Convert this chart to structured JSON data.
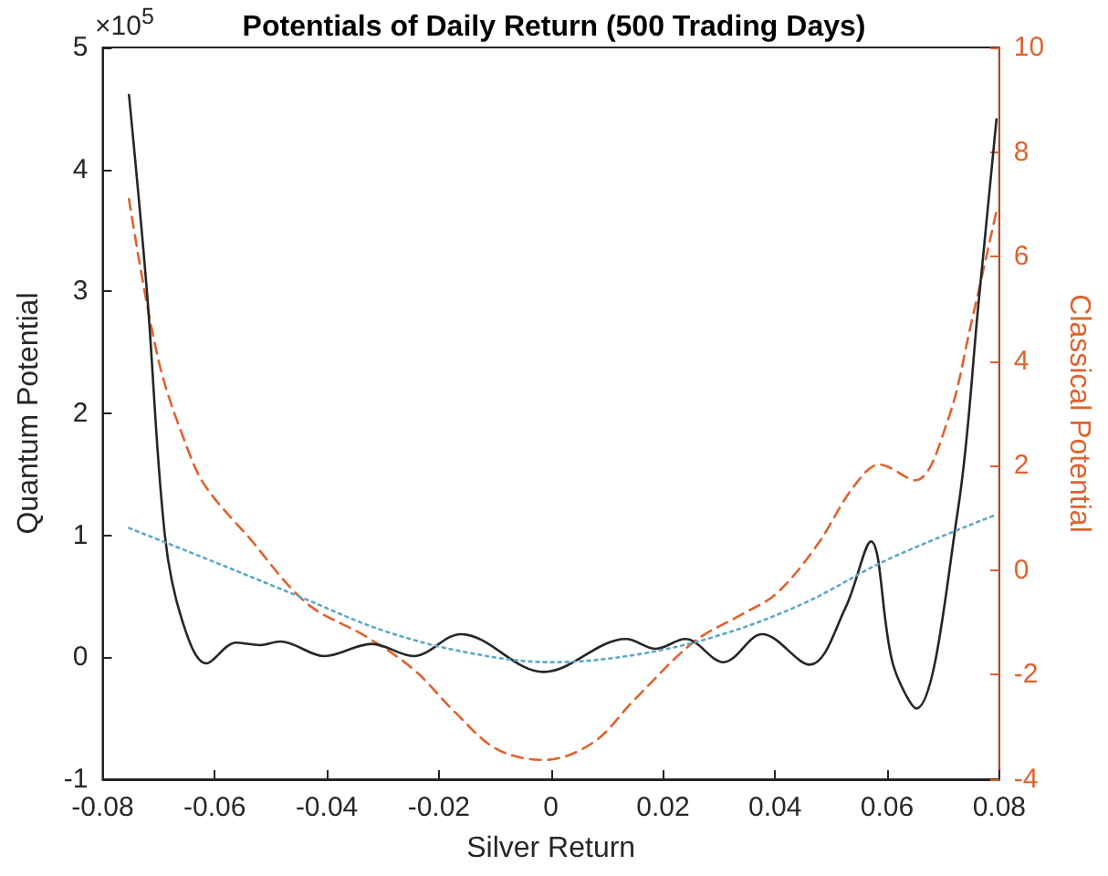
{
  "chart_data": {
    "type": "line",
    "title": "Potentials of Daily Return (500 Trading Days)",
    "xlabel": "Silver Return",
    "ylabel": "Quantum Potential",
    "y2label": "Classical Potential",
    "annotations": [
      "×10$^{5}$"
    ],
    "xlim": [
      -0.08,
      0.08
    ],
    "xticks": [
      -0.08,
      -0.06,
      -0.04,
      -0.02,
      0,
      0.02,
      0.04,
      0.06,
      0.08
    ],
    "ylim": [
      -1,
      5
    ],
    "yticks": [
      -1,
      0,
      1,
      2,
      3,
      4,
      5
    ],
    "y2lim": [
      -4,
      10
    ],
    "y2ticks": [
      -4,
      -2,
      0,
      2,
      4,
      6,
      8,
      10
    ],
    "grid": false,
    "marker": "none",
    "series": [
      {
        "color": "#262626",
        "line_style": "solid",
        "x": [
          -0.0753,
          -0.0721,
          -0.0689,
          -0.0658,
          -0.0615,
          -0.0562,
          -0.052,
          -0.0483,
          -0.0404,
          -0.032,
          -0.0245,
          -0.0161,
          -0.0013,
          0.0134,
          0.0187,
          0.024,
          0.0308,
          0.0377,
          0.0462,
          0.0525,
          0.0571,
          0.061,
          0.0652,
          0.0726,
          0.0763,
          0.0795
        ],
        "values": [
          4.61,
          3.0,
          1.0,
          0.3,
          -0.05,
          0.12,
          0.1,
          0.13,
          0.01,
          0.11,
          0.01,
          0.19,
          -0.12,
          0.15,
          0.07,
          0.15,
          -0.04,
          0.19,
          -0.06,
          0.4,
          0.95,
          -0.05,
          -0.42,
          1.2,
          2.9,
          4.41
        ]
      },
      {
        "color": "#e0622e",
        "line_style": "dashed",
        "axis": "y2",
        "x": [
          -0.0753,
          -0.07,
          -0.0647,
          -0.0615,
          -0.0541,
          -0.0436,
          -0.033,
          -0.0245,
          -0.0171,
          -0.0097,
          -0.0013,
          0.0075,
          0.0148,
          0.0254,
          0.0338,
          0.0402,
          0.0475,
          0.0539,
          0.0586,
          0.065,
          0.0708,
          0.075,
          0.0795
        ],
        "values": [
          7.1,
          4.0,
          2.28,
          1.58,
          0.65,
          -0.63,
          -1.27,
          -1.9,
          -2.72,
          -3.42,
          -3.63,
          -3.3,
          -2.49,
          -1.38,
          -0.86,
          -0.45,
          0.48,
          1.58,
          2.02,
          1.72,
          2.86,
          4.72,
          6.87
        ]
      },
      {
        "color": "#5fa8c8",
        "line_style": "dotted",
        "x": [
          -0.0753,
          -0.06,
          -0.045,
          -0.03,
          -0.015,
          0,
          0.015,
          0.03,
          0.045,
          0.06,
          0.0795
        ],
        "values": [
          1.06,
          0.78,
          0.5,
          0.22,
          0.04,
          -0.04,
          0.02,
          0.18,
          0.44,
          0.8,
          1.17
        ]
      }
    ]
  }
}
